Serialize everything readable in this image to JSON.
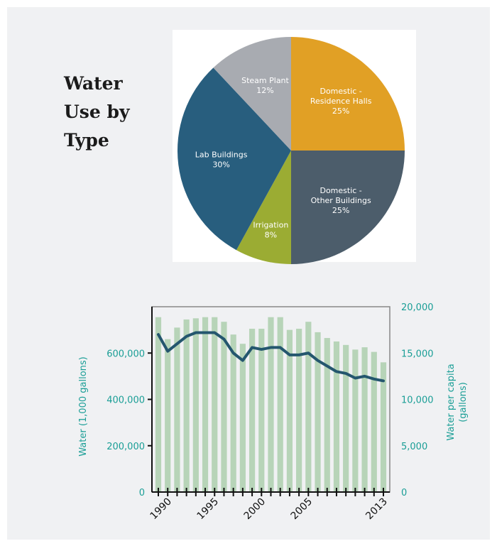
{
  "title_lines": [
    "Water",
    "Use by",
    "Type"
  ],
  "colors": {
    "teal": "#1a9e96",
    "bar_fill": "#b7d4b8",
    "line": "#24566e",
    "frame": "#888888",
    "axis": "#111111"
  },
  "chart_data": [
    {
      "type": "pie",
      "title": "Water Use by Type",
      "slices": [
        {
          "label_lines": [
            "Domestic -",
            "Residence Halls"
          ],
          "value": 25,
          "value_label": "25%",
          "color": "#e1a025"
        },
        {
          "label_lines": [
            "Domestic -",
            "Other Buildings"
          ],
          "value": 25,
          "value_label": "25%",
          "color": "#4c5d6b"
        },
        {
          "label_lines": [
            "Irrigation"
          ],
          "value": 8,
          "value_label": "8%",
          "color": "#9bac33"
        },
        {
          "label_lines": [
            "Lab Buildings"
          ],
          "value": 30,
          "value_label": "30%",
          "color": "#285e7e"
        },
        {
          "label_lines": [
            "Steam Plant"
          ],
          "value": 12,
          "value_label": "12%",
          "color": "#a8abb1"
        }
      ]
    },
    {
      "type": "bar+line",
      "ylabel": "Water (1,000 gallons)",
      "y2label_lines": [
        "Water per capita",
        "(gallons)"
      ],
      "ylim": [
        0,
        800000
      ],
      "yticks": [
        0,
        200000,
        400000,
        600000
      ],
      "ytick_labels": [
        "0",
        "200,000",
        "400,000",
        "600,000"
      ],
      "y2lim": [
        0,
        20000
      ],
      "y2ticks": [
        0,
        5000,
        10000,
        15000,
        20000
      ],
      "y2tick_labels": [
        "0",
        "5,000",
        "10,000",
        "15,000",
        "20,000"
      ],
      "xtick_labels": [
        {
          "year": 1990,
          "label": "1990"
        },
        {
          "year": 1995,
          "label": "1995"
        },
        {
          "year": 2000,
          "label": "2000"
        },
        {
          "year": 2005,
          "label": "2005"
        },
        {
          "year": 2013,
          "label": "2013"
        }
      ],
      "x": [
        1989,
        1990,
        1991,
        1992,
        1993,
        1994,
        1995,
        1996,
        1997,
        1998,
        1999,
        2000,
        2001,
        2002,
        2003,
        2004,
        2005,
        2006,
        2007,
        2008,
        2009,
        2010,
        2011,
        2012,
        2013
      ],
      "series": [
        {
          "kind": "bar",
          "axis": "left",
          "values": [
            755000,
            660000,
            710000,
            745000,
            750000,
            755000,
            755000,
            735000,
            680000,
            640000,
            705000,
            705000,
            755000,
            755000,
            700000,
            705000,
            735000,
            690000,
            665000,
            650000,
            635000,
            615000,
            625000,
            605000,
            560000
          ]
        },
        {
          "kind": "line",
          "axis": "right",
          "values": [
            17000,
            15200,
            16000,
            16800,
            17200,
            17200,
            17200,
            16500,
            15000,
            14200,
            15600,
            15400,
            15600,
            15600,
            14800,
            14800,
            15000,
            14200,
            13600,
            13000,
            12800,
            12300,
            12500,
            12200,
            12000
          ]
        }
      ]
    }
  ]
}
